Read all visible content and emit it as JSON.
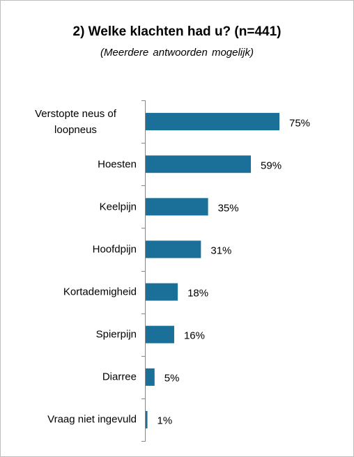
{
  "chart_data": {
    "type": "bar",
    "orientation": "horizontal",
    "title": "2) Welke klachten had u? (n=441)",
    "subtitle": "(Meerdere antwoorden mogelijk)",
    "categories": [
      "Verstopte neus of loopneus",
      "Hoesten",
      "Keelpijn",
      "Hoofdpijn",
      "Kortademigheid",
      "Spierpijn",
      "Diarree",
      "Vraag niet ingevuld"
    ],
    "values": [
      75,
      59,
      35,
      31,
      18,
      16,
      5,
      1
    ],
    "value_labels": [
      "75%",
      "59%",
      "35%",
      "31%",
      "18%",
      "16%",
      "5%",
      "1%"
    ],
    "color": "#1a7099"
  }
}
